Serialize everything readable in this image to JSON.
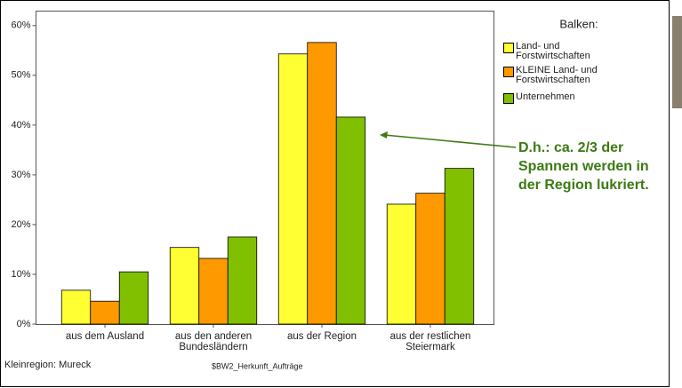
{
  "chart_data": {
    "type": "bar",
    "categories": [
      "aus dem Ausland",
      "aus den anderen Bundesländern",
      "aus der Region",
      "aus der restlichen Steiermark"
    ],
    "series": [
      {
        "name": "Land- und Forstwirtschaften",
        "color": "#ffff33",
        "values": [
          6.8,
          15.4,
          54.3,
          24.1
        ]
      },
      {
        "name": "KLEINE Land- und Forstwirtschaften",
        "color": "#ff9900",
        "values": [
          4.6,
          13.2,
          56.6,
          26.3
        ]
      },
      {
        "name": "Unternehmen",
        "color": "#80c000",
        "values": [
          10.5,
          17.5,
          41.6,
          31.3
        ]
      }
    ],
    "ylim": [
      0,
      63
    ],
    "yticks": [
      {
        "value": 0,
        "label": "0%"
      },
      {
        "value": 10,
        "label": "10%"
      },
      {
        "value": 20,
        "label": "20%"
      },
      {
        "value": 30,
        "label": "30%"
      },
      {
        "value": 40,
        "label": "40%"
      },
      {
        "value": 50,
        "label": "50%"
      },
      {
        "value": 60,
        "label": "60%"
      }
    ],
    "legend_title": "Balken:",
    "annotation": "D.h.: ca. 2/3 der Spannen werden in der Region lukriert.",
    "footer_left": "Kleinregion: Mureck",
    "footer_center": "$BW2_Herkunft_Aufträge"
  }
}
